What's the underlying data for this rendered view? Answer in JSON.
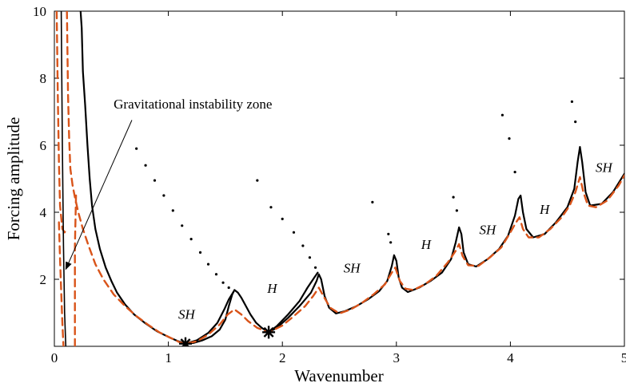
{
  "chart_data": {
    "type": "line",
    "title": "",
    "xlabel": "Wavenumber",
    "ylabel": "Forcing amplitude",
    "xlim": [
      0,
      5
    ],
    "ylim": [
      0,
      10
    ],
    "xticks": [
      "0",
      "1",
      "2",
      "3",
      "4",
      "5"
    ],
    "yticks": [
      "2",
      "4",
      "6",
      "8",
      "10"
    ],
    "grid": false,
    "colors": {
      "solid": "#000000",
      "dashed": "#d9541a"
    },
    "series": [
      {
        "style": "solid",
        "color": "#000000",
        "segments": [
          [
            [
              0.23,
              10
            ],
            [
              0.24,
              9.5
            ],
            [
              0.25,
              8.2
            ],
            [
              0.27,
              7.2
            ],
            [
              0.29,
              6.0
            ],
            [
              0.31,
              5.0
            ],
            [
              0.33,
              4.2
            ],
            [
              0.36,
              3.5
            ],
            [
              0.4,
              2.9
            ],
            [
              0.45,
              2.35
            ],
            [
              0.5,
              1.95
            ],
            [
              0.55,
              1.6
            ],
            [
              0.62,
              1.25
            ],
            [
              0.7,
              0.95
            ],
            [
              0.8,
              0.68
            ],
            [
              0.9,
              0.45
            ],
            [
              1.0,
              0.28
            ],
            [
              1.08,
              0.16
            ],
            [
              1.15,
              0.08
            ],
            [
              1.22,
              0.1
            ],
            [
              1.3,
              0.18
            ],
            [
              1.38,
              0.3
            ],
            [
              1.45,
              0.5
            ],
            [
              1.5,
              0.8
            ],
            [
              1.53,
              1.2
            ],
            [
              1.56,
              1.55
            ],
            [
              1.58,
              1.68
            ],
            [
              1.61,
              1.6
            ],
            [
              1.64,
              1.45
            ],
            [
              1.68,
              1.2
            ],
            [
              1.72,
              0.95
            ],
            [
              1.77,
              0.7
            ],
            [
              1.82,
              0.55
            ],
            [
              1.88,
              0.42
            ],
            [
              1.95,
              0.55
            ],
            [
              2.05,
              0.85
            ],
            [
              2.15,
              1.2
            ],
            [
              2.25,
              1.6
            ],
            [
              2.3,
              1.95
            ],
            [
              2.32,
              2.15
            ],
            [
              2.34,
              2.0
            ],
            [
              2.37,
              1.5
            ],
            [
              2.41,
              1.15
            ],
            [
              2.47,
              0.98
            ],
            [
              2.55,
              1.05
            ],
            [
              2.65,
              1.2
            ],
            [
              2.75,
              1.4
            ],
            [
              2.85,
              1.65
            ],
            [
              2.92,
              1.95
            ],
            [
              2.96,
              2.4
            ],
            [
              2.98,
              2.72
            ],
            [
              3.0,
              2.55
            ],
            [
              3.02,
              2.05
            ],
            [
              3.05,
              1.75
            ],
            [
              3.1,
              1.62
            ],
            [
              3.2,
              1.75
            ],
            [
              3.3,
              1.95
            ],
            [
              3.4,
              2.2
            ],
            [
              3.48,
              2.6
            ],
            [
              3.52,
              3.1
            ],
            [
              3.55,
              3.55
            ],
            [
              3.57,
              3.35
            ],
            [
              3.59,
              2.8
            ],
            [
              3.63,
              2.45
            ],
            [
              3.7,
              2.38
            ],
            [
              3.8,
              2.6
            ],
            [
              3.9,
              2.9
            ],
            [
              3.98,
              3.3
            ],
            [
              4.04,
              3.9
            ],
            [
              4.07,
              4.4
            ],
            [
              4.09,
              4.5
            ],
            [
              4.11,
              4.0
            ],
            [
              4.14,
              3.5
            ],
            [
              4.2,
              3.25
            ],
            [
              4.3,
              3.35
            ],
            [
              4.4,
              3.7
            ],
            [
              4.5,
              4.15
            ],
            [
              4.56,
              4.7
            ],
            [
              4.59,
              5.5
            ],
            [
              4.61,
              5.95
            ],
            [
              4.63,
              5.5
            ],
            [
              4.66,
              4.6
            ],
            [
              4.7,
              4.2
            ],
            [
              4.8,
              4.25
            ],
            [
              4.9,
              4.6
            ],
            [
              5.0,
              5.15
            ]
          ],
          [
            [
              1.15,
              0.08
            ],
            [
              1.25,
              0.18
            ],
            [
              1.35,
              0.4
            ],
            [
              1.43,
              0.7
            ],
            [
              1.49,
              1.1
            ],
            [
              1.53,
              1.4
            ],
            [
              1.57,
              1.62
            ]
          ],
          [
            [
              1.88,
              0.42
            ],
            [
              1.95,
              0.6
            ],
            [
              2.05,
              0.95
            ],
            [
              2.15,
              1.35
            ],
            [
              2.22,
              1.75
            ],
            [
              2.28,
              2.05
            ],
            [
              2.31,
              2.2
            ]
          ]
        ],
        "markers": [
          [
            0.72,
            5.9
          ],
          [
            0.8,
            5.4
          ],
          [
            0.88,
            4.95
          ],
          [
            0.96,
            4.5
          ],
          [
            1.04,
            4.05
          ],
          [
            1.12,
            3.6
          ],
          [
            1.2,
            3.2
          ],
          [
            1.28,
            2.8
          ],
          [
            1.35,
            2.45
          ],
          [
            1.42,
            2.15
          ],
          [
            1.48,
            1.9
          ],
          [
            1.53,
            1.75
          ],
          [
            1.78,
            4.95
          ],
          [
            1.9,
            4.15
          ],
          [
            2.0,
            3.8
          ],
          [
            2.1,
            3.4
          ],
          [
            2.18,
            3.0
          ],
          [
            2.24,
            2.65
          ],
          [
            2.29,
            2.35
          ],
          [
            2.79,
            4.3
          ],
          [
            2.93,
            3.35
          ],
          [
            2.95,
            3.1
          ],
          [
            3.5,
            4.45
          ],
          [
            3.53,
            4.05
          ],
          [
            3.93,
            6.9
          ],
          [
            3.99,
            6.2
          ],
          [
            4.04,
            5.2
          ],
          [
            4.54,
            7.3
          ],
          [
            4.57,
            6.7
          ]
        ]
      },
      {
        "style": "dashed",
        "color": "#d9541a",
        "segments": [
          [
            [
              0.11,
              10
            ],
            [
              0.12,
              7.5
            ],
            [
              0.13,
              6.2
            ],
            [
              0.14,
              5.3
            ],
            [
              0.16,
              4.8
            ],
            [
              0.18,
              4.45
            ],
            [
              0.21,
              4.0
            ],
            [
              0.25,
              3.5
            ],
            [
              0.3,
              3.0
            ],
            [
              0.36,
              2.45
            ],
            [
              0.43,
              2.0
            ],
            [
              0.52,
              1.55
            ],
            [
              0.62,
              1.2
            ],
            [
              0.72,
              0.9
            ],
            [
              0.82,
              0.65
            ],
            [
              0.92,
              0.42
            ],
            [
              1.02,
              0.25
            ],
            [
              1.1,
              0.12
            ],
            [
              1.15,
              0.08
            ],
            [
              1.25,
              0.15
            ],
            [
              1.35,
              0.35
            ],
            [
              1.45,
              0.65
            ],
            [
              1.52,
              0.95
            ],
            [
              1.58,
              1.1
            ],
            [
              1.64,
              0.95
            ],
            [
              1.7,
              0.75
            ],
            [
              1.78,
              0.55
            ],
            [
              1.88,
              0.42
            ],
            [
              2.0,
              0.62
            ],
            [
              2.1,
              0.9
            ],
            [
              2.2,
              1.2
            ],
            [
              2.27,
              1.5
            ],
            [
              2.32,
              1.75
            ],
            [
              2.36,
              1.5
            ],
            [
              2.42,
              1.15
            ],
            [
              2.5,
              0.98
            ],
            [
              2.6,
              1.1
            ],
            [
              2.7,
              1.3
            ],
            [
              2.8,
              1.55
            ],
            [
              2.9,
              1.85
            ],
            [
              2.96,
              2.2
            ],
            [
              2.99,
              2.35
            ],
            [
              3.03,
              1.95
            ],
            [
              3.08,
              1.72
            ],
            [
              3.15,
              1.68
            ],
            [
              3.25,
              1.85
            ],
            [
              3.35,
              2.1
            ],
            [
              3.45,
              2.5
            ],
            [
              3.52,
              2.85
            ],
            [
              3.55,
              3.05
            ],
            [
              3.58,
              2.7
            ],
            [
              3.63,
              2.42
            ],
            [
              3.72,
              2.4
            ],
            [
              3.82,
              2.65
            ],
            [
              3.92,
              2.95
            ],
            [
              4.0,
              3.4
            ],
            [
              4.05,
              3.7
            ],
            [
              4.08,
              3.85
            ],
            [
              4.11,
              3.5
            ],
            [
              4.16,
              3.25
            ],
            [
              4.25,
              3.25
            ],
            [
              4.35,
              3.5
            ],
            [
              4.45,
              3.85
            ],
            [
              4.52,
              4.2
            ],
            [
              4.57,
              4.6
            ],
            [
              4.61,
              5.05
            ],
            [
              4.64,
              4.6
            ],
            [
              4.68,
              4.2
            ],
            [
              4.75,
              4.15
            ],
            [
              4.85,
              4.35
            ],
            [
              4.95,
              4.8
            ],
            [
              5.0,
              5.1
            ]
          ],
          [
            [
              0.02,
              10
            ],
            [
              0.03,
              7.5
            ],
            [
              0.04,
              5.5
            ],
            [
              0.05,
              4.2
            ],
            [
              0.07,
              3.5
            ],
            [
              0.09,
              3.4
            ],
            [
              0.11,
              3.5
            ]
          ],
          [
            [
              0.19,
              4.5
            ],
            [
              0.18,
              3.0
            ],
            [
              0.18,
              2.0
            ],
            [
              0.18,
              1.0
            ],
            [
              0.18,
              0
            ]
          ],
          [
            [
              0.04,
              3.7
            ],
            [
              0.05,
              2.6
            ],
            [
              0.06,
              1.6
            ],
            [
              0.07,
              0.7
            ],
            [
              0.08,
              0
            ]
          ]
        ]
      }
    ],
    "thin_solid": [
      [
        [
          0.06,
          10
        ],
        [
          0.07,
          6
        ],
        [
          0.08,
          3
        ],
        [
          0.09,
          1
        ],
        [
          0.1,
          0
        ]
      ]
    ],
    "stars": [
      [
        1.15,
        0.08
      ],
      [
        1.88,
        0.42
      ]
    ],
    "region_labels": [
      {
        "text": "SH",
        "x": 1.16,
        "y": 0.82
      },
      {
        "text": "H",
        "x": 1.91,
        "y": 1.6
      },
      {
        "text": "SH",
        "x": 2.61,
        "y": 2.2
      },
      {
        "text": "H",
        "x": 3.26,
        "y": 2.9
      },
      {
        "text": "SH",
        "x": 3.8,
        "y": 3.35
      },
      {
        "text": "H",
        "x": 4.3,
        "y": 3.95
      },
      {
        "text": "SH",
        "x": 4.82,
        "y": 5.2
      }
    ],
    "annotation": {
      "text": "Gravitational instability zone",
      "x": 0.52,
      "y": 7.1,
      "arrow_from": [
        0.68,
        6.75
      ],
      "arrow_to": [
        0.1,
        2.3
      ]
    }
  }
}
